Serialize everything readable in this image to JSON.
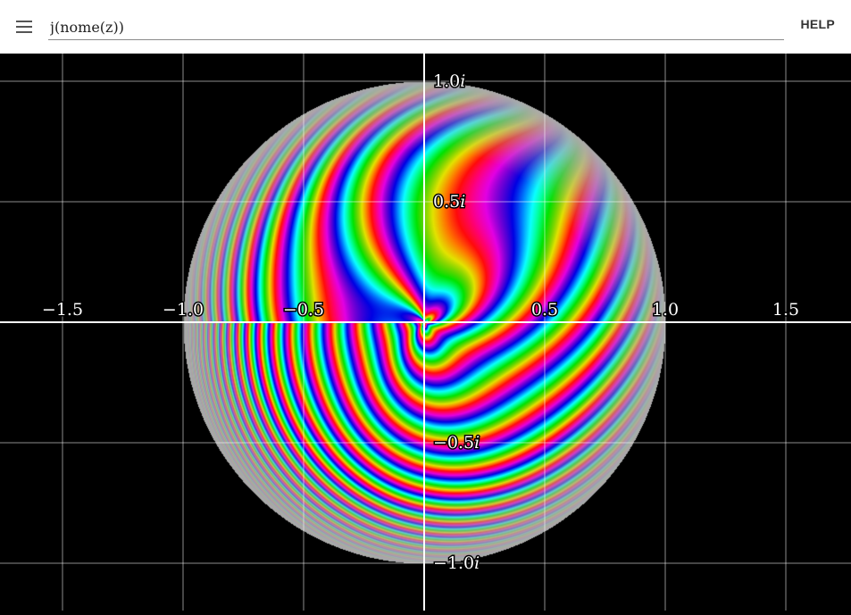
{
  "toolbar": {
    "menu_icon": "hamburger-menu-icon",
    "expression": "j(nome(z))",
    "help_label": "HELP"
  },
  "plot": {
    "x_ticks": [
      {
        "value": -1.5,
        "label": "−1.5"
      },
      {
        "value": -1.0,
        "label": "−1.0"
      },
      {
        "value": -0.5,
        "label": "−0.5"
      },
      {
        "value": 0.5,
        "label": "0.5"
      },
      {
        "value": 1.0,
        "label": "1.0"
      },
      {
        "value": 1.5,
        "label": "1.5"
      }
    ],
    "y_ticks": [
      {
        "value": 1.0,
        "label": "1.0",
        "unit": "i"
      },
      {
        "value": 0.5,
        "label": "0.5",
        "unit": "i"
      },
      {
        "value": -0.5,
        "label": "−0.5",
        "unit": "i"
      },
      {
        "value": -1.0,
        "label": "−1.0",
        "unit": "i"
      }
    ],
    "colors": {
      "background": "#000000",
      "grid": "#ffffff",
      "disk_edge": "#aaaaaa"
    }
  }
}
